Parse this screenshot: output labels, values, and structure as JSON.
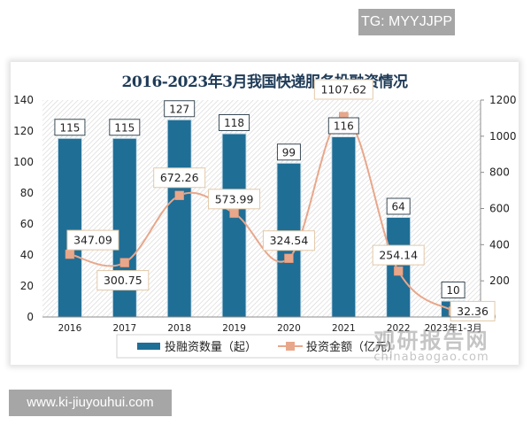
{
  "badges": {
    "top_right": "TG: MYYJJPP",
    "bottom_left": "www.ki-jiuyouhui.com"
  },
  "watermark": {
    "cn": "观研报告网",
    "en": "chinabaogao.com"
  },
  "colors": {
    "bar": "#1f6e96",
    "line": "#e8a78b",
    "marker": "#e8a78b",
    "title": "#1f3b57",
    "badge_bg": "#a6a6a6"
  },
  "chart_data": {
    "type": "bar+line",
    "title": "2016-2023年3月我国快递服务投融资情况",
    "categories": [
      "2016",
      "2017",
      "2018",
      "2019",
      "2020",
      "2021",
      "2022",
      "2023年1-3月"
    ],
    "series": [
      {
        "name": "投融资数量（起）",
        "type": "bar",
        "axis": "left",
        "values": [
          115,
          115,
          127,
          118,
          99,
          116,
          64,
          10
        ]
      },
      {
        "name": "投资金额（亿元）",
        "type": "line",
        "axis": "right",
        "smooth": true,
        "values": [
          347.09,
          300.75,
          672.26,
          573.99,
          324.54,
          1107.62,
          254.14,
          32.36
        ]
      }
    ],
    "left_axis": {
      "ylim": [
        0,
        140
      ],
      "ticks": [
        0,
        20,
        40,
        60,
        80,
        100,
        120,
        140
      ]
    },
    "right_axis": {
      "ylim": [
        0,
        1200
      ],
      "ticks": [
        0,
        200,
        400,
        600,
        800,
        1000,
        1200
      ]
    },
    "xlabel": "",
    "ylabel": "",
    "legend": {
      "position": "bottom",
      "entries": [
        "投融资数量（起）",
        "投资金额（亿元）"
      ]
    },
    "grid": false,
    "plot_background": "diagonal hatch"
  }
}
